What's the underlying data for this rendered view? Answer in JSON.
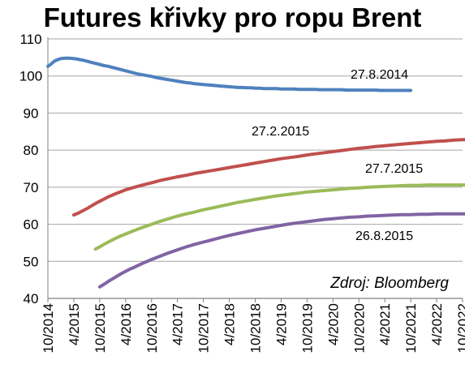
{
  "chart_data": {
    "type": "line",
    "title": "Futures křivky pro ropu Brent",
    "xlabel": "",
    "ylabel": "",
    "ylim": [
      40,
      110
    ],
    "yticks": [
      40,
      50,
      60,
      70,
      80,
      90,
      100,
      110
    ],
    "grid": "horizontal",
    "x_tick_labels": [
      "10/2014",
      "4/2015",
      "10/2015",
      "4/2016",
      "10/2016",
      "4/2017",
      "10/2017",
      "4/2018",
      "10/2018",
      "4/2019",
      "10/2019",
      "4/2020",
      "10/2020",
      "4/2021",
      "10/2021",
      "4/2022",
      "10/2022"
    ],
    "source": "Zdroj: Bloomberg",
    "colors": {
      "27.8.2014": "#4f81bd",
      "27.2.2015": "#c0504d",
      "27.7.2015": "#9bbb59",
      "26.8.2015": "#8064a2"
    },
    "series": [
      {
        "name": "27.8.2014",
        "x": [
          0,
          0.5,
          1,
          1.5,
          2,
          3,
          4,
          5,
          6,
          7,
          8,
          9,
          10,
          11,
          12,
          13,
          14,
          15,
          16,
          17,
          18,
          19,
          20,
          21,
          22,
          23,
          24,
          25,
          26,
          27,
          28,
          29,
          30,
          31,
          32,
          33,
          34,
          35,
          36,
          37,
          38,
          39,
          40,
          41,
          42,
          43,
          44,
          45,
          46,
          47,
          48,
          49,
          50,
          51,
          52,
          53,
          54,
          55,
          56,
          57,
          58,
          59,
          60,
          61,
          62,
          63,
          64,
          65,
          66,
          67,
          68,
          69,
          70,
          71,
          72,
          73,
          74,
          75,
          76,
          77,
          78,
          79,
          80,
          81,
          82,
          83,
          84
        ],
        "y": [
          102.6,
          103.0,
          103.5,
          104.0,
          104.3,
          104.7,
          104.8,
          104.8,
          104.7,
          104.5,
          104.3,
          104.0,
          103.7,
          103.4,
          103.1,
          102.8,
          102.6,
          102.3,
          102.0,
          101.7,
          101.4,
          101.1,
          100.8,
          100.5,
          100.3,
          100.1,
          99.9,
          99.6,
          99.4,
          99.2,
          99.0,
          98.8,
          98.6,
          98.4,
          98.2,
          98.1,
          97.9,
          97.8,
          97.7,
          97.6,
          97.5,
          97.4,
          97.3,
          97.2,
          97.1,
          97.0,
          96.9,
          96.9,
          96.8,
          96.8,
          96.7,
          96.7,
          96.6,
          96.6,
          96.6,
          96.6,
          96.5,
          96.5,
          96.5,
          96.5,
          96.4,
          96.4,
          96.4,
          96.4,
          96.4,
          96.3,
          96.3,
          96.3,
          96.3,
          96.3,
          96.3,
          96.2,
          96.2,
          96.2,
          96.2,
          96.2,
          96.2,
          96.2,
          96.2,
          96.1,
          96.1,
          96.1,
          96.1,
          96.1,
          96.1,
          96.1,
          96.1
        ]
      },
      {
        "name": "27.2.2015",
        "x": [
          6,
          7,
          8,
          9,
          10,
          11,
          12,
          13,
          14,
          15,
          16,
          18,
          20,
          22,
          24,
          26,
          28,
          30,
          32,
          34,
          36,
          38,
          40,
          42,
          44,
          46,
          48,
          50,
          52,
          54,
          56,
          58,
          60,
          62,
          64,
          66,
          68,
          70,
          72,
          74,
          76,
          78,
          80,
          82,
          84,
          86,
          88,
          90,
          92,
          94,
          96,
          98,
          100
        ],
        "y": [
          62.5,
          63.0,
          63.6,
          64.2,
          64.9,
          65.6,
          66.2,
          66.8,
          67.4,
          67.9,
          68.4,
          69.3,
          70.0,
          70.6,
          71.2,
          71.8,
          72.3,
          72.8,
          73.2,
          73.7,
          74.1,
          74.5,
          74.9,
          75.3,
          75.7,
          76.1,
          76.5,
          76.9,
          77.3,
          77.7,
          78.0,
          78.3,
          78.7,
          79.0,
          79.3,
          79.6,
          79.9,
          80.2,
          80.5,
          80.7,
          81.0,
          81.2,
          81.4,
          81.6,
          81.8,
          82.0,
          82.2,
          82.4,
          82.5,
          82.7,
          82.8,
          82.9,
          83.0
        ]
      },
      {
        "name": "27.7.2015",
        "x": [
          11,
          12,
          13,
          14,
          15,
          16,
          17,
          18,
          20,
          22,
          24,
          26,
          28,
          30,
          32,
          34,
          36,
          38,
          40,
          42,
          44,
          46,
          48,
          50,
          52,
          54,
          56,
          58,
          60,
          62,
          64,
          66,
          68,
          70,
          72,
          74,
          76,
          78,
          80,
          82,
          84,
          86,
          88,
          90,
          92,
          94,
          96,
          98,
          100
        ],
        "y": [
          53.3,
          53.9,
          54.6,
          55.2,
          55.8,
          56.4,
          56.9,
          57.4,
          58.3,
          59.2,
          60.0,
          60.8,
          61.5,
          62.2,
          62.8,
          63.3,
          63.9,
          64.4,
          64.9,
          65.4,
          65.9,
          66.3,
          66.7,
          67.1,
          67.5,
          67.8,
          68.1,
          68.4,
          68.7,
          68.9,
          69.1,
          69.3,
          69.5,
          69.7,
          69.8,
          70.0,
          70.1,
          70.2,
          70.3,
          70.4,
          70.5,
          70.5,
          70.6,
          70.6,
          70.6,
          70.6,
          70.6,
          70.6,
          70.6
        ]
      },
      {
        "name": "26.8.2015",
        "x": [
          12,
          13,
          14,
          15,
          16,
          17,
          18,
          19,
          20,
          22,
          24,
          26,
          28,
          30,
          32,
          34,
          36,
          38,
          40,
          42,
          44,
          46,
          48,
          50,
          52,
          54,
          56,
          58,
          60,
          62,
          64,
          66,
          68,
          70,
          72,
          74,
          76,
          78,
          80,
          82,
          84,
          86,
          88,
          90,
          92,
          94,
          96,
          98,
          100
        ],
        "y": [
          43.1,
          43.8,
          44.6,
          45.3,
          46.0,
          46.7,
          47.3,
          47.9,
          48.4,
          49.5,
          50.5,
          51.4,
          52.3,
          53.1,
          53.9,
          54.6,
          55.2,
          55.8,
          56.4,
          57.0,
          57.5,
          58.0,
          58.5,
          58.9,
          59.3,
          59.7,
          60.1,
          60.4,
          60.7,
          61.0,
          61.3,
          61.5,
          61.7,
          61.9,
          62.0,
          62.2,
          62.3,
          62.4,
          62.5,
          62.6,
          62.6,
          62.7,
          62.7,
          62.8,
          62.8,
          62.8,
          62.8,
          62.8,
          62.8
        ]
      }
    ]
  }
}
